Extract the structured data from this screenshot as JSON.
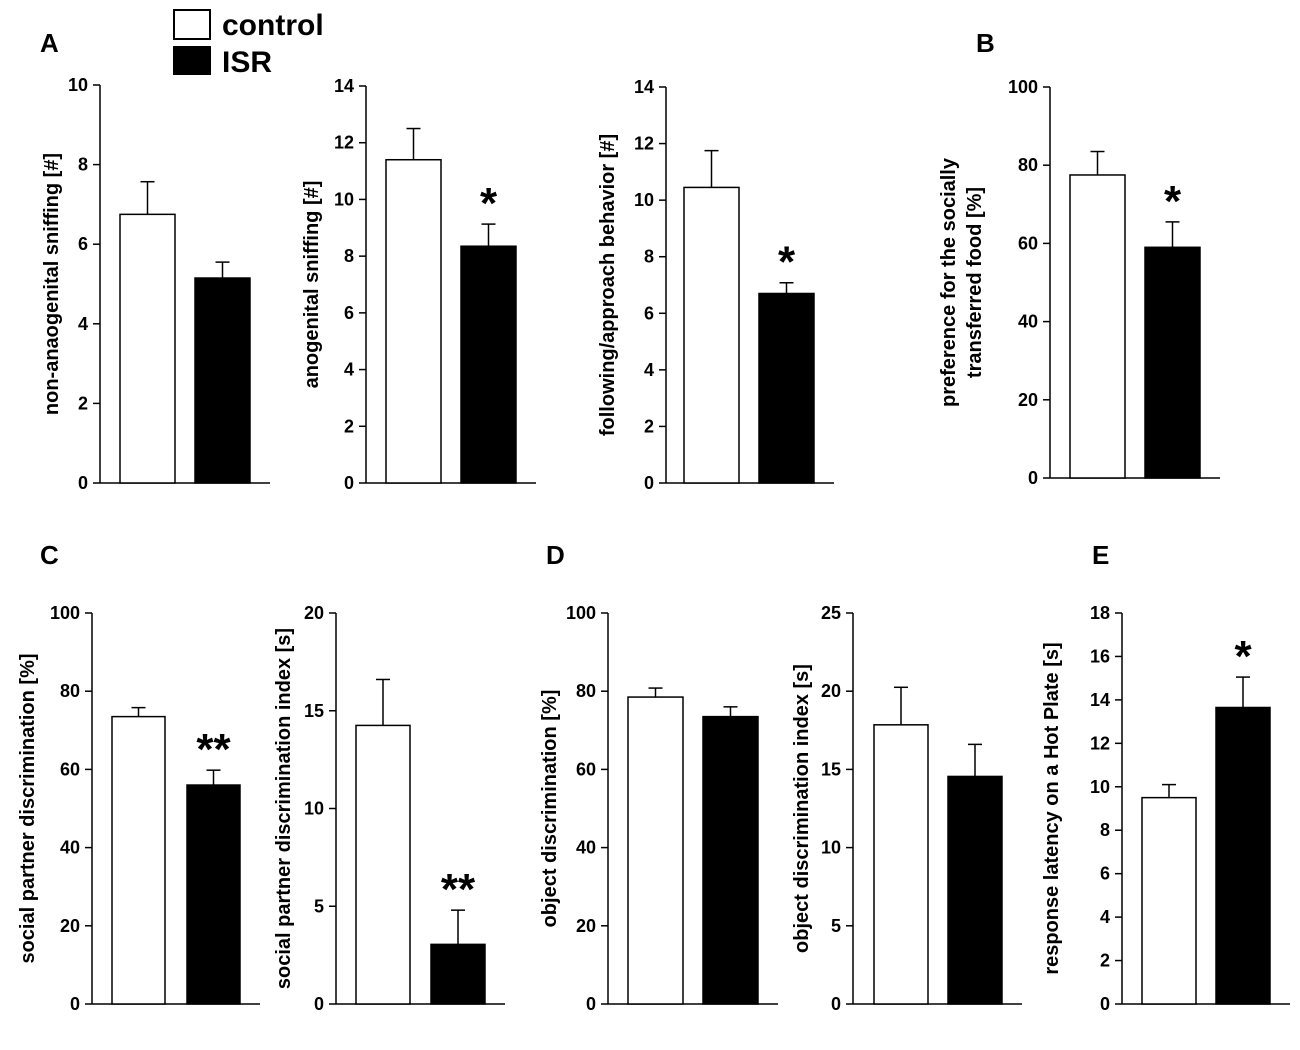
{
  "legend": [
    {
      "label": "control",
      "fill": "#ffffff"
    },
    {
      "label": "ISR",
      "fill": "#000000"
    }
  ],
  "panel_labels": [
    "A",
    "B",
    "C",
    "D",
    "E"
  ],
  "chart_data": [
    {
      "type": "bar",
      "panel": "A",
      "ylabel": [
        "non-anaogenital sniffing [#]"
      ],
      "ylim": [
        0,
        10
      ],
      "yticks": [
        0,
        2,
        4,
        6,
        8,
        10
      ],
      "categories": [
        "control",
        "ISR"
      ],
      "values": [
        6.75,
        5.15
      ],
      "errors": [
        0.82,
        0.4
      ],
      "significance": ""
    },
    {
      "type": "bar",
      "panel": "A",
      "ylabel": [
        "anogenital sniffing [#]"
      ],
      "ylim": [
        0,
        14
      ],
      "yticks": [
        0,
        2,
        4,
        6,
        8,
        10,
        12,
        14
      ],
      "categories": [
        "control",
        "ISR"
      ],
      "values": [
        11.4,
        8.35
      ],
      "errors": [
        1.1,
        0.78
      ],
      "significance": "*"
    },
    {
      "type": "bar",
      "panel": "A",
      "ylabel": [
        "following/approach behavior [#]"
      ],
      "ylim": [
        0,
        14
      ],
      "yticks": [
        0,
        2,
        4,
        6,
        8,
        10,
        12,
        14
      ],
      "categories": [
        "control",
        "ISR"
      ],
      "values": [
        10.45,
        6.7
      ],
      "errors": [
        1.3,
        0.38
      ],
      "significance": "*"
    },
    {
      "type": "bar",
      "panel": "B",
      "ylabel": [
        "preference for the socially",
        "transferred food [%]"
      ],
      "ylim": [
        0,
        100
      ],
      "yticks": [
        0,
        20,
        40,
        60,
        80,
        100
      ],
      "categories": [
        "control",
        "ISR"
      ],
      "values": [
        77.5,
        59
      ],
      "errors": [
        6,
        6.5
      ],
      "significance": "*"
    },
    {
      "type": "bar",
      "panel": "C",
      "ylabel": [
        "social partner discrimination [%]"
      ],
      "ylim": [
        0,
        100
      ],
      "yticks": [
        0,
        20,
        40,
        60,
        80,
        100
      ],
      "categories": [
        "control",
        "ISR"
      ],
      "values": [
        73.5,
        56
      ],
      "errors": [
        2.3,
        3.8
      ],
      "significance": "**"
    },
    {
      "type": "bar",
      "panel": "C",
      "ylabel": [
        "social partner discrimination index [s]"
      ],
      "ylim": [
        0,
        20
      ],
      "yticks": [
        0,
        5,
        10,
        15,
        20
      ],
      "categories": [
        "control",
        "ISR"
      ],
      "values": [
        14.25,
        3.05
      ],
      "errors": [
        2.35,
        1.75
      ],
      "significance": "**"
    },
    {
      "type": "bar",
      "panel": "D",
      "ylabel": [
        "object discrimination [%]"
      ],
      "ylim": [
        0,
        100
      ],
      "yticks": [
        0,
        20,
        40,
        60,
        80,
        100
      ],
      "categories": [
        "control",
        "ISR"
      ],
      "values": [
        78.5,
        73.5
      ],
      "errors": [
        2.3,
        2.5
      ],
      "significance": ""
    },
    {
      "type": "bar",
      "panel": "D",
      "ylabel": [
        "object discrimination index [s]"
      ],
      "ylim": [
        0,
        25
      ],
      "yticks": [
        0,
        5,
        10,
        15,
        20,
        25
      ],
      "categories": [
        "control",
        "ISR"
      ],
      "values": [
        17.85,
        14.55
      ],
      "errors": [
        2.4,
        2.05
      ],
      "significance": ""
    },
    {
      "type": "bar",
      "panel": "E",
      "ylabel": [
        "response latency on a Hot Plate [s]"
      ],
      "ylim": [
        0,
        18
      ],
      "yticks": [
        0,
        2,
        4,
        6,
        8,
        10,
        12,
        14,
        16,
        18
      ],
      "categories": [
        "control",
        "ISR"
      ],
      "values": [
        9.5,
        13.65
      ],
      "errors": [
        0.6,
        1.4
      ],
      "significance": "*"
    }
  ]
}
